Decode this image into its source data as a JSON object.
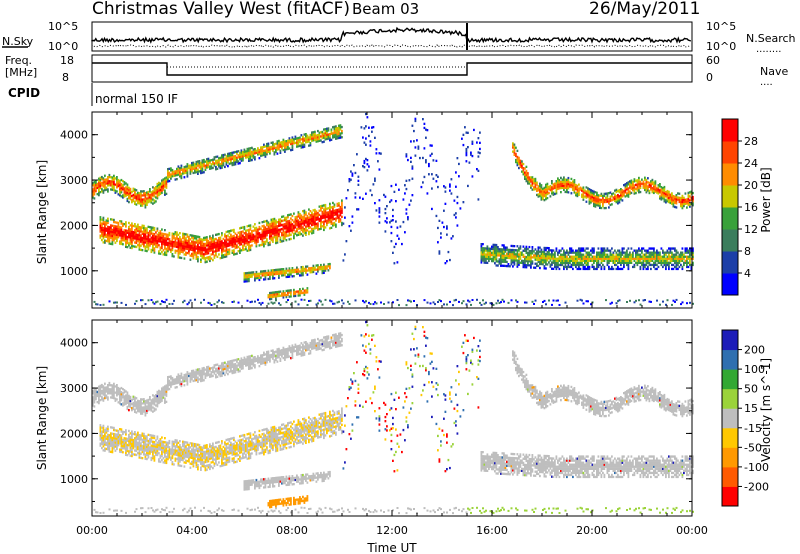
{
  "header": {
    "title": "Christmas Valley West (fitACF)",
    "beam": "Beam 03",
    "date": "26/May/2011"
  },
  "top_panels": {
    "nsky_label": "N.Sky",
    "nsearch_label": "N.Search",
    "nsearch_line": "........",
    "freq_label_line1": "Freq.",
    "freq_label_line2": "[MHz]",
    "nave_label": "Nave",
    "nave_line": "....",
    "cpid_label": "CPID",
    "cpid_value": "normal 150 IF",
    "noise_ticks": [
      "10^5",
      "10^0"
    ],
    "freq_ticks": [
      "18",
      "8"
    ],
    "nave_ticks": [
      "60",
      "0"
    ]
  },
  "colors": {
    "power": [
      "#0000ff",
      "#1c3fa8",
      "#3a7d5c",
      "#39a13a",
      "#c8c800",
      "#ff8c00",
      "#ff4400",
      "#ff0000"
    ],
    "velocity": [
      "#ff0000",
      "#ff5a00",
      "#ff9900",
      "#ffc800",
      "#bebebe",
      "#9bd33a",
      "#33a833",
      "#2f6fb0",
      "#1c1cb8"
    ]
  },
  "chart_data": [
    {
      "type": "heatmap",
      "panel": "power",
      "xlabel": "",
      "ylabel": "Slant Range [km]",
      "xlim": [
        0,
        24
      ],
      "ylim": [
        180,
        4500
      ],
      "y_ticks": [
        "1000",
        "2000",
        "3000",
        "4000"
      ],
      "colorbar_label": "Power [dB]",
      "colorbar_ticks": [
        "4",
        "8",
        "12",
        "16",
        "20",
        "24",
        "28"
      ],
      "colorbar_range": [
        0,
        32
      ],
      "echo_bands": [
        {
          "name": "far range band",
          "t_start": 0.0,
          "t_end": 3.0,
          "range_km": [
            2400,
            3000
          ]
        },
        {
          "name": "upper diagonal band",
          "t_start": 3.0,
          "t_end": 10.0,
          "range_km": [
            3000,
            4000
          ]
        },
        {
          "name": "main strong band",
          "t_start": 1.0,
          "t_end": 10.0,
          "range_km": [
            1300,
            2300
          ]
        },
        {
          "name": "near range echoes",
          "t_start": 6.0,
          "t_end": 9.5,
          "range_km": [
            400,
            1100
          ]
        },
        {
          "name": "late range band",
          "t_start": 15.5,
          "t_end": 24.0,
          "range_km": [
            900,
            1700
          ]
        },
        {
          "name": "late far band",
          "t_start": 17.0,
          "t_end": 24.0,
          "range_km": [
            2300,
            3900
          ]
        }
      ]
    },
    {
      "type": "heatmap",
      "panel": "velocity",
      "xlabel": "Time UT",
      "ylabel": "Slant Range [km]",
      "xlim": [
        0,
        24
      ],
      "ylim": [
        180,
        4500
      ],
      "x_ticks": [
        "00:00",
        "04:00",
        "08:00",
        "12:00",
        "16:00",
        "20:00",
        "00:00"
      ],
      "y_ticks": [
        "1000",
        "2000",
        "3000",
        "4000"
      ],
      "colorbar_label": "Velocity [m s^-1]",
      "colorbar_ticks": [
        "200",
        "100",
        "50",
        "15",
        "-15",
        "-50",
        "-100",
        "-200"
      ]
    }
  ]
}
